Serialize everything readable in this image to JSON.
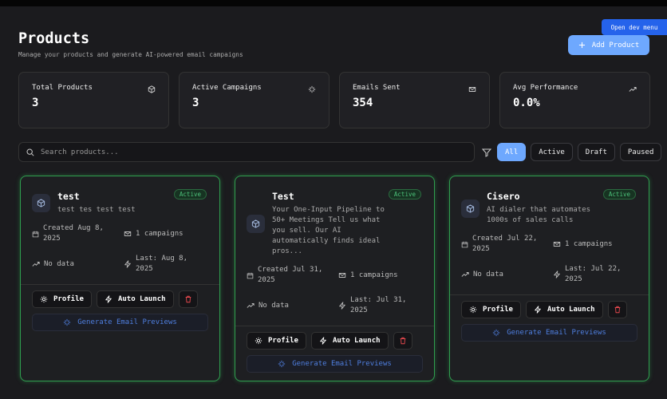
{
  "header": {
    "title": "Products",
    "subtitle": "Manage your products and generate AI-powered email campaigns",
    "dev_menu": "Open dev menu",
    "add_button": "Add Product"
  },
  "stats": [
    {
      "label": "Total Products",
      "value": "3"
    },
    {
      "label": "Active Campaigns",
      "value": "3"
    },
    {
      "label": "Emails Sent",
      "value": "354"
    },
    {
      "label": "Avg Performance",
      "value": "0.0%"
    }
  ],
  "search": {
    "placeholder": "Search products..."
  },
  "filters": [
    "All",
    "Active",
    "Draft",
    "Paused"
  ],
  "actions": {
    "profile": "Profile",
    "auto_launch": "Auto Launch",
    "generate": "Generate Email Previews"
  },
  "products": [
    {
      "name": "test",
      "status": "Active",
      "description": "test tes test test",
      "created": "Created Aug 8, 2025",
      "campaigns": "1 campaigns",
      "performance": "No data",
      "last": "Last: Aug 8, 2025"
    },
    {
      "name": "Test",
      "status": "Active",
      "description": "Your One-Input Pipeline to 50+ Meetings Tell us what you sell. Our AI automatically finds ideal pros...",
      "created": "Created Jul 31, 2025",
      "campaigns": "1 campaigns",
      "performance": "No data",
      "last": "Last: Jul 31, 2025"
    },
    {
      "name": "Cisero",
      "status": "Active",
      "description": "AI dialer that automates 1000s of sales calls",
      "created": "Created Jul 22, 2025",
      "campaigns": "1 campaigns",
      "performance": "No data",
      "last": "Last: Jul 22, 2025"
    }
  ]
}
